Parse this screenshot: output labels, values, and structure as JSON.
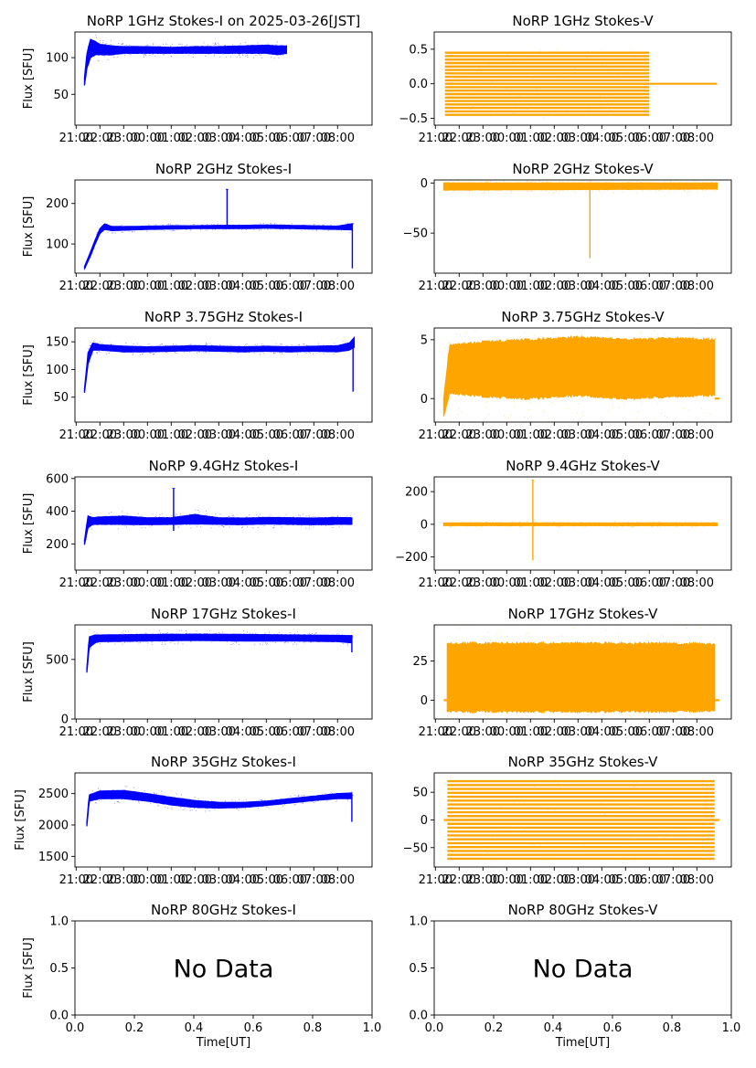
{
  "figure": {
    "ylabel": "Flux [SFU]",
    "xlabel": "Time[UT]",
    "no_data_text": "No Data"
  },
  "colors": {
    "stokes_i": "#0000ff",
    "stokes_v": "#ffa500",
    "axes": "#000000",
    "background": "#ffffff"
  },
  "chart_data": [
    {
      "id": "1GHz-I",
      "type": "scatter",
      "title": "NoRP 1GHz Stokes-I on 2025-03-26[JST]",
      "ylabel": "Flux [SFU]",
      "xlabel": "",
      "xticks": [
        "21:00",
        "22:00",
        "23:00",
        "00:00",
        "01:00",
        "02:00",
        "03:00",
        "04:00",
        "05:00",
        "06:00",
        "07:00",
        "08:00"
      ],
      "ylim": [
        8,
        135
      ],
      "yticks": [
        50,
        100
      ],
      "color": "#0000ff",
      "series": [
        {
          "kind": "band",
          "x": [
            0.35,
            0.45,
            0.6,
            0.8,
            1.0,
            1.5,
            2.0,
            3.0,
            4.0,
            5.0,
            6.0,
            7.0,
            8.0,
            8.5,
            8.85
          ],
          "low": [
            62,
            85,
            100,
            104,
            104,
            104,
            106,
            106,
            106,
            106,
            106,
            106,
            106,
            104,
            106
          ],
          "high": [
            72,
            105,
            125,
            122,
            118,
            116,
            115,
            115,
            114,
            115,
            115,
            116,
            117,
            116,
            116
          ]
        }
      ]
    },
    {
      "id": "1GHz-V",
      "type": "scatter",
      "title": "NoRP 1GHz Stokes-V",
      "ylabel": "",
      "xlabel": "",
      "xticks": [
        "21:00",
        "22:00",
        "23:00",
        "00:00",
        "01:00",
        "02:00",
        "03:00",
        "04:00",
        "05:00",
        "06:00",
        "07:00",
        "08:00"
      ],
      "ylim": [
        -0.6,
        0.75
      ],
      "yticks": [
        -0.5,
        0.0,
        0.5
      ],
      "color": "#ffa500",
      "series": [
        {
          "kind": "levels",
          "x_range": [
            0.4,
            9.0
          ],
          "x_end_dense": 9.0,
          "levels": [
            -0.45,
            -0.4,
            -0.35,
            -0.3,
            -0.25,
            -0.2,
            -0.15,
            -0.1,
            -0.05,
            0.0,
            0.05,
            0.1,
            0.15,
            0.2,
            0.25,
            0.3,
            0.35,
            0.4,
            0.45
          ],
          "flat": {
            "x_range": [
              9.0,
              11.85
            ],
            "y": 0.0
          }
        }
      ]
    },
    {
      "id": "2GHz-I",
      "type": "scatter",
      "title": "NoRP 2GHz Stokes-I",
      "ylabel": "Flux [SFU]",
      "xlabel": "",
      "xticks": [
        "21:00",
        "22:00",
        "23:00",
        "00:00",
        "01:00",
        "02:00",
        "03:00",
        "04:00",
        "05:00",
        "06:00",
        "07:00",
        "08:00"
      ],
      "ylim": [
        28,
        258
      ],
      "yticks": [
        100,
        200
      ],
      "color": "#0000ff",
      "series": [
        {
          "kind": "band",
          "x": [
            0.35,
            0.6,
            0.8,
            1.0,
            1.2,
            1.5,
            2.0,
            3.0,
            4.0,
            5.0,
            6.0,
            7.0,
            8.0,
            9.0,
            10.0,
            11.0,
            11.6
          ],
          "low": [
            38,
            70,
            100,
            126,
            136,
            133,
            134,
            136,
            137,
            138,
            138,
            138,
            139,
            138,
            137,
            136,
            135
          ],
          "high": [
            44,
            80,
            110,
            138,
            150,
            143,
            143,
            144,
            145,
            145,
            146,
            146,
            147,
            146,
            145,
            144,
            150
          ]
        },
        {
          "kind": "spike",
          "x": 6.35,
          "low": 145,
          "high": 235
        },
        {
          "kind": "spike",
          "x": 11.62,
          "low": 40,
          "high": 150
        }
      ]
    },
    {
      "id": "2GHz-V",
      "type": "scatter",
      "title": "NoRP 2GHz Stokes-V",
      "ylabel": "",
      "xlabel": "",
      "xticks": [
        "21:00",
        "22:00",
        "23:00",
        "00:00",
        "01:00",
        "02:00",
        "03:00",
        "04:00",
        "05:00",
        "06:00",
        "07:00",
        "08:00"
      ],
      "ylim": [
        -90,
        3
      ],
      "yticks": [
        -50,
        0
      ],
      "color": "#ffa500",
      "series": [
        {
          "kind": "band",
          "x": [
            0.35,
            11.85
          ],
          "low": [
            -7,
            -6
          ],
          "high": [
            0,
            0
          ]
        },
        {
          "kind": "spike",
          "x": 6.5,
          "low": -75,
          "high": 0
        }
      ]
    },
    {
      "id": "3.75GHz-I",
      "type": "scatter",
      "title": "NoRP 3.75GHz Stokes-I",
      "ylabel": "Flux [SFU]",
      "xlabel": "",
      "xticks": [
        "21:00",
        "22:00",
        "23:00",
        "00:00",
        "01:00",
        "02:00",
        "03:00",
        "04:00",
        "05:00",
        "06:00",
        "07:00",
        "08:00"
      ],
      "ylim": [
        5,
        175
      ],
      "yticks": [
        50,
        100,
        150
      ],
      "color": "#0000ff",
      "series": [
        {
          "kind": "band",
          "x": [
            0.35,
            0.5,
            0.7,
            1.0,
            2.0,
            3.0,
            4.0,
            5.0,
            6.0,
            7.0,
            8.0,
            9.0,
            10.0,
            11.0,
            11.5,
            11.7
          ],
          "low": [
            58,
            110,
            135,
            135,
            132,
            132,
            133,
            134,
            133,
            132,
            133,
            132,
            133,
            132,
            135,
            140
          ],
          "high": [
            65,
            130,
            148,
            145,
            142,
            141,
            142,
            143,
            142,
            141,
            142,
            141,
            142,
            143,
            148,
            158
          ]
        },
        {
          "kind": "spike",
          "x": 11.65,
          "low": 60,
          "high": 145
        }
      ]
    },
    {
      "id": "3.75GHz-V",
      "type": "scatter",
      "title": "NoRP 3.75GHz Stokes-V",
      "ylabel": "",
      "xlabel": "",
      "xticks": [
        "21:00",
        "22:00",
        "23:00",
        "00:00",
        "01:00",
        "02:00",
        "03:00",
        "04:00",
        "05:00",
        "06:00",
        "07:00",
        "08:00"
      ],
      "ylim": [
        -2.0,
        6.0
      ],
      "yticks": [
        0,
        5
      ],
      "color": "#ffa500",
      "series": [
        {
          "kind": "band",
          "x": [
            0.35,
            0.6,
            2.0,
            4.0,
            6.0,
            8.0,
            10.0,
            11.75
          ],
          "low": [
            -1.5,
            0.5,
            0.2,
            0.0,
            0.3,
            0.0,
            0.2,
            0.3
          ],
          "high": [
            0.0,
            4.5,
            4.8,
            5.0,
            5.2,
            5.0,
            5.1,
            5.0
          ]
        },
        {
          "kind": "flat",
          "x_range": [
            11.75,
            11.95
          ],
          "y": 0.0
        }
      ]
    },
    {
      "id": "9.4GHz-I",
      "type": "scatter",
      "title": "NoRP 9.4GHz Stokes-I",
      "ylabel": "Flux [SFU]",
      "xlabel": "",
      "xticks": [
        "21:00",
        "22:00",
        "23:00",
        "00:00",
        "01:00",
        "02:00",
        "03:00",
        "04:00",
        "05:00",
        "06:00",
        "07:00",
        "08:00"
      ],
      "ylim": [
        40,
        610
      ],
      "yticks": [
        200,
        400,
        600
      ],
      "color": "#0000ff",
      "series": [
        {
          "kind": "band",
          "x": [
            0.35,
            0.5,
            0.7,
            1.0,
            2.0,
            3.0,
            4.0,
            5.0,
            6.0,
            7.0,
            8.0,
            9.0,
            10.0,
            11.0,
            11.6
          ],
          "low": [
            195,
            300,
            320,
            320,
            320,
            318,
            320,
            322,
            320,
            318,
            322,
            320,
            318,
            320,
            320
          ],
          "high": [
            220,
            370,
            360,
            365,
            370,
            360,
            360,
            380,
            360,
            358,
            362,
            360,
            358,
            362,
            360
          ]
        },
        {
          "kind": "spike",
          "x": 4.1,
          "low": 280,
          "high": 540
        }
      ]
    },
    {
      "id": "9.4GHz-V",
      "type": "scatter",
      "title": "NoRP 9.4GHz Stokes-V",
      "ylabel": "",
      "xlabel": "",
      "xticks": [
        "21:00",
        "22:00",
        "23:00",
        "00:00",
        "01:00",
        "02:00",
        "03:00",
        "04:00",
        "05:00",
        "06:00",
        "07:00",
        "08:00"
      ],
      "ylim": [
        -280,
        290
      ],
      "yticks": [
        -200,
        0,
        200
      ],
      "color": "#ffa500",
      "series": [
        {
          "kind": "band",
          "x": [
            0.35,
            11.85
          ],
          "low": [
            -8,
            -8
          ],
          "high": [
            8,
            8
          ]
        },
        {
          "kind": "spike",
          "x": 4.1,
          "low": -220,
          "high": 270
        }
      ]
    },
    {
      "id": "17GHz-I",
      "type": "scatter",
      "title": "NoRP 17GHz Stokes-I",
      "ylabel": "Flux [SFU]",
      "xlabel": "",
      "xticks": [
        "21:00",
        "22:00",
        "23:00",
        "00:00",
        "01:00",
        "02:00",
        "03:00",
        "04:00",
        "05:00",
        "06:00",
        "07:00",
        "08:00"
      ],
      "ylim": [
        0,
        790
      ],
      "yticks": [
        0,
        500
      ],
      "color": "#0000ff",
      "series": [
        {
          "kind": "band",
          "x": [
            0.45,
            0.55,
            0.8,
            1.0,
            3.0,
            5.0,
            7.0,
            9.0,
            11.0,
            11.6
          ],
          "low": [
            390,
            600,
            640,
            650,
            655,
            660,
            655,
            655,
            650,
            640
          ],
          "high": [
            430,
            690,
            705,
            705,
            710,
            712,
            710,
            706,
            702,
            700
          ]
        },
        {
          "kind": "spike",
          "x": 11.6,
          "low": 560,
          "high": 690
        }
      ]
    },
    {
      "id": "17GHz-V",
      "type": "scatter",
      "title": "NoRP 17GHz Stokes-V",
      "ylabel": "",
      "xlabel": "",
      "xticks": [
        "21:00",
        "22:00",
        "23:00",
        "00:00",
        "01:00",
        "02:00",
        "03:00",
        "04:00",
        "05:00",
        "06:00",
        "07:00",
        "08:00"
      ],
      "ylim": [
        -12,
        48
      ],
      "yticks": [
        0,
        25
      ],
      "color": "#ffa500",
      "series": [
        {
          "kind": "band",
          "x": [
            0.5,
            11.75
          ],
          "low": [
            -7,
            -7
          ],
          "high": [
            36,
            36
          ]
        },
        {
          "kind": "flat",
          "x_range": [
            0.35,
            0.5
          ],
          "y": 0.0
        },
        {
          "kind": "flat",
          "x_range": [
            11.75,
            11.95
          ],
          "y": 0.0
        }
      ]
    },
    {
      "id": "35GHz-I",
      "type": "scatter",
      "title": "NoRP 35GHz Stokes-I",
      "ylabel": "Flux [SFU]",
      "xlabel": "",
      "xticks": [
        "21:00",
        "22:00",
        "23:00",
        "00:00",
        "01:00",
        "02:00",
        "03:00",
        "04:00",
        "05:00",
        "06:00",
        "07:00",
        "08:00"
      ],
      "ylim": [
        1330,
        2830
      ],
      "yticks": [
        1500,
        2000,
        2500
      ],
      "color": "#0000ff",
      "series": [
        {
          "kind": "band",
          "x": [
            0.45,
            0.55,
            1.0,
            2.0,
            3.0,
            4.0,
            5.0,
            6.0,
            7.0,
            8.0,
            9.0,
            10.0,
            11.0,
            11.6
          ],
          "low": [
            1980,
            2380,
            2420,
            2420,
            2380,
            2320,
            2280,
            2270,
            2280,
            2310,
            2350,
            2390,
            2420,
            2420
          ],
          "high": [
            2050,
            2480,
            2540,
            2550,
            2500,
            2440,
            2390,
            2360,
            2360,
            2380,
            2420,
            2460,
            2500,
            2510
          ]
        },
        {
          "kind": "spike",
          "x": 11.6,
          "low": 2050,
          "high": 2470
        }
      ]
    },
    {
      "id": "35GHz-V",
      "type": "scatter",
      "title": "NoRP 35GHz Stokes-V",
      "ylabel": "",
      "xlabel": "",
      "xticks": [
        "21:00",
        "22:00",
        "23:00",
        "00:00",
        "01:00",
        "02:00",
        "03:00",
        "04:00",
        "05:00",
        "06:00",
        "07:00",
        "08:00"
      ],
      "ylim": [
        -85,
        85
      ],
      "yticks": [
        -50,
        0,
        50
      ],
      "color": "#ffa500",
      "series": [
        {
          "kind": "levels",
          "x_range": [
            0.5,
            11.75
          ],
          "x_end_dense": 11.75,
          "levels": [
            -70,
            -63,
            -56,
            -49,
            -42,
            -35,
            -28,
            -21,
            -14,
            -7,
            0,
            7,
            14,
            21,
            28,
            35,
            42,
            49,
            56,
            63,
            70
          ],
          "flat": {
            "x_range": [
              11.75,
              11.95
            ],
            "y": 0
          }
        },
        {
          "kind": "flat",
          "x_range": [
            0.35,
            0.5
          ],
          "y": 0
        }
      ]
    },
    {
      "id": "80GHz-I",
      "type": "scatter",
      "title": "NoRP 80GHz Stokes-I",
      "ylabel": "Flux [SFU]",
      "xlabel": "Time[UT]",
      "no_data": true,
      "xlim": [
        0.0,
        1.0
      ],
      "ylim": [
        0.0,
        1.0
      ],
      "xticks_num": [
        "0.0",
        "0.2",
        "0.4",
        "0.6",
        "0.8",
        "1.0"
      ],
      "yticks_num": [
        "0.0",
        "0.5",
        "1.0"
      ],
      "series": []
    },
    {
      "id": "80GHz-V",
      "type": "scatter",
      "title": "NoRP 80GHz Stokes-V",
      "ylabel": "",
      "xlabel": "Time[UT]",
      "no_data": true,
      "xlim": [
        0.0,
        1.0
      ],
      "ylim": [
        0.0,
        1.0
      ],
      "xticks_num": [
        "0.0",
        "0.2",
        "0.4",
        "0.6",
        "0.8",
        "1.0"
      ],
      "yticks_num": [
        "0.0",
        "0.5",
        "1.0"
      ],
      "series": []
    }
  ]
}
